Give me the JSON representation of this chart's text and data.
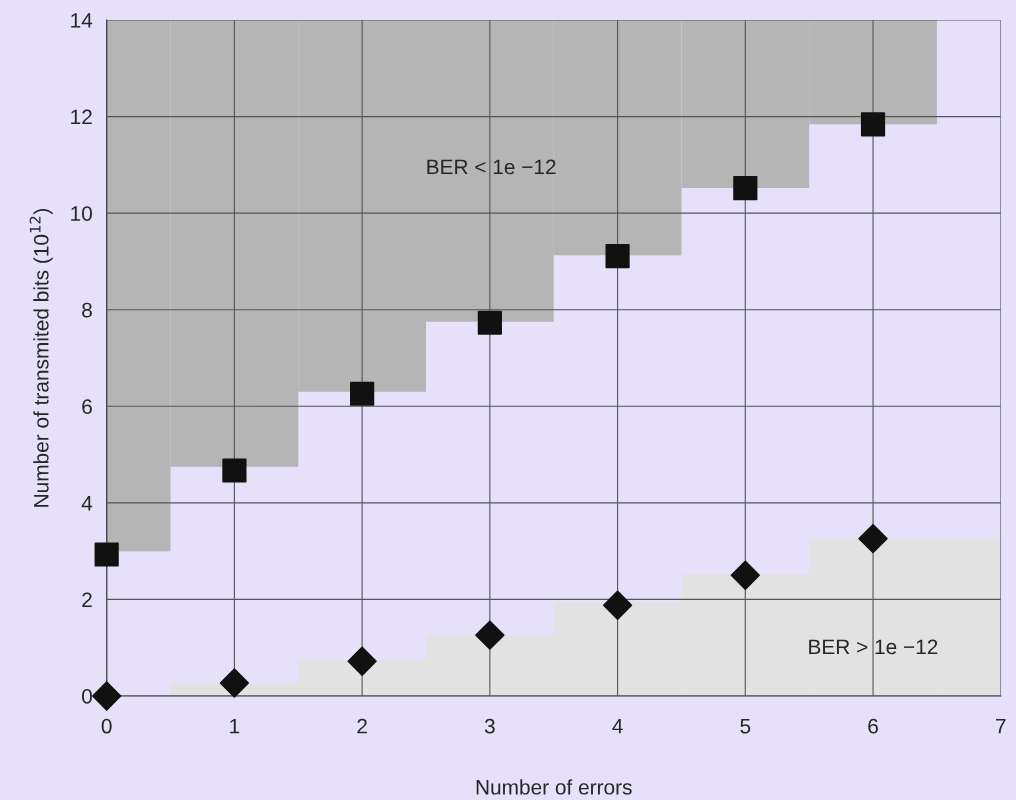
{
  "chart_data": {
    "type": "scatter",
    "xlabel": "Number of errors",
    "ylabel": "Number of transmited bits (10$^{12}$)",
    "xlim": [
      0,
      7
    ],
    "ylim": [
      0,
      14
    ],
    "xticks": [
      0,
      1,
      2,
      3,
      4,
      5,
      6,
      7
    ],
    "yticks": [
      0,
      2,
      4,
      6,
      8,
      10,
      12,
      14
    ],
    "grid": true,
    "series": [
      {
        "type": "bar",
        "color": "#b5b5b5",
        "x": [
          0,
          1,
          2,
          3,
          4,
          5,
          6
        ],
        "base": [
          3.0,
          4.75,
          6.3,
          7.75,
          9.13,
          10.52,
          11.84
        ],
        "values": [
          11.0,
          9.25,
          7.7,
          6.25,
          4.87,
          3.48,
          2.16
        ]
      },
      {
        "type": "bar",
        "color": "#e2e2e2",
        "x": [
          1,
          2,
          3,
          4,
          5,
          6,
          7
        ],
        "values": [
          0.27,
          0.74,
          1.26,
          1.94,
          2.52,
          3.26,
          3.26
        ]
      },
      {
        "marker": "square",
        "color": "#111111",
        "x": [
          0,
          1,
          2,
          3,
          4,
          5,
          6
        ],
        "values": [
          2.93,
          4.67,
          6.26,
          7.73,
          9.11,
          10.52,
          11.84
        ]
      },
      {
        "marker": "diamond",
        "color": "#111111",
        "x": [
          0,
          1,
          2,
          3,
          4,
          5,
          6
        ],
        "values": [
          0,
          0.27,
          0.72,
          1.26,
          1.88,
          2.5,
          3.26
        ]
      }
    ],
    "annotations": [
      "BER < 1e −12",
      "BER > 1e −12"
    ]
  }
}
